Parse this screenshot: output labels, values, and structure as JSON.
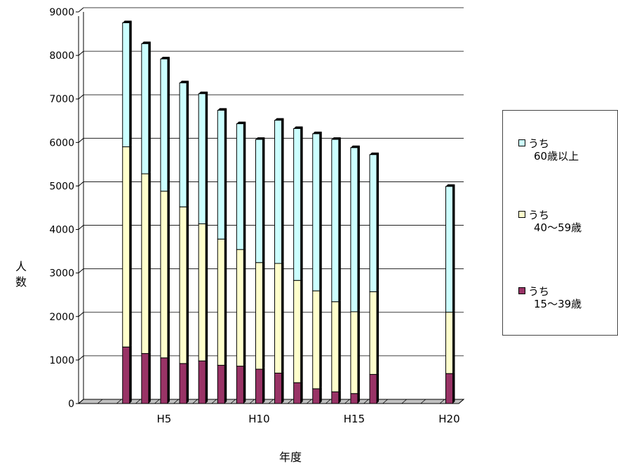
{
  "chart_data": {
    "type": "bar",
    "stacked": true,
    "categories": [
      "",
      "",
      "",
      "",
      "H5",
      "",
      "",
      "",
      "",
      "H10",
      "",
      "",
      "",
      "",
      "H15",
      "",
      "",
      "",
      "",
      "H20"
    ],
    "ylabel": "人数",
    "xlabel": "年度",
    "ylim": [
      0,
      9000
    ],
    "yticks": [
      0,
      1000,
      2000,
      3000,
      4000,
      5000,
      6000,
      7000,
      8000,
      9000
    ],
    "grid": true,
    "legend_position": "right",
    "series": [
      {
        "name": "うち15〜39歳",
        "color": "#993366",
        "values": [
          null,
          null,
          1300,
          1150,
          1050,
          920,
          980,
          880,
          860,
          790,
          700,
          480,
          340,
          270,
          230,
          670,
          null,
          null,
          null,
          690
        ]
      },
      {
        "name": "うち40〜59歳",
        "color": "#ffffcc",
        "values": [
          null,
          null,
          4600,
          4130,
          3830,
          3600,
          3150,
          2900,
          2680,
          2450,
          2520,
          2350,
          2250,
          2070,
          1880,
          1900,
          null,
          null,
          null,
          1410
        ]
      },
      {
        "name": "うち60歳以上",
        "color": "#ccffff",
        "values": [
          null,
          null,
          2850,
          2990,
          3040,
          2850,
          2990,
          2960,
          2890,
          2830,
          3290,
          3490,
          3610,
          3730,
          3770,
          3150,
          null,
          null,
          null,
          2890
        ]
      }
    ]
  },
  "legend": {
    "items": [
      {
        "line1": "うち",
        "line2": "60歳以上",
        "color": "#ccffff"
      },
      {
        "line1": "うち",
        "line2": "40〜59歳",
        "color": "#ffffcc"
      },
      {
        "line1": "うち",
        "line2": "15〜39歳",
        "color": "#993366"
      }
    ]
  }
}
